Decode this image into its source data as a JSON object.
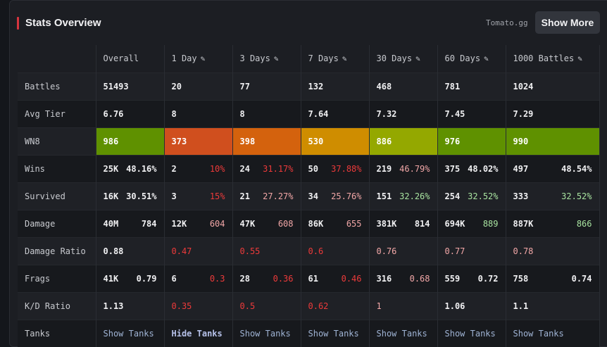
{
  "panel": {
    "title": "Stats Overview",
    "source": "Tomato.gg",
    "show_more_label": "Show More",
    "accent": "#d8353f"
  },
  "columns": [
    {
      "label": "Overall",
      "editable": false
    },
    {
      "label": "1 Day",
      "editable": true
    },
    {
      "label": "3 Days",
      "editable": true
    },
    {
      "label": "7 Days",
      "editable": true
    },
    {
      "label": "30 Days",
      "editable": true
    },
    {
      "label": "60 Days",
      "editable": true
    },
    {
      "label": "1000 Battles",
      "editable": true
    }
  ],
  "edit_icon": "pencil-icon",
  "rows": {
    "battles": {
      "label": "Battles",
      "values": [
        "51493",
        "20",
        "77",
        "132",
        "468",
        "781",
        "1024"
      ]
    },
    "avg_tier": {
      "label": "Avg Tier",
      "values": [
        "6.76",
        "8",
        "8",
        "7.64",
        "7.32",
        "7.45",
        "7.29"
      ]
    },
    "wn8": {
      "label": "WN8",
      "values": [
        "986",
        "373",
        "398",
        "530",
        "886",
        "976",
        "990"
      ],
      "colors": [
        "#5f9100",
        "#d04f1e",
        "#d4620d",
        "#cf8d00",
        "#94a800",
        "#5f9100",
        "#5f9100"
      ]
    },
    "wins": {
      "label": "Wins",
      "cells": [
        {
          "a": "25K",
          "b": "48.16%",
          "b_class": "val"
        },
        {
          "a": "2",
          "b": "10%",
          "b_class": "bad"
        },
        {
          "a": "24",
          "b": "31.17%",
          "b_class": "bad"
        },
        {
          "a": "50",
          "b": "37.88%",
          "b_class": "bad"
        },
        {
          "a": "219",
          "b": "46.79%",
          "b_class": "avg"
        },
        {
          "a": "375",
          "b": "48.02%",
          "b_class": "val"
        },
        {
          "a": "497",
          "b": "48.54%",
          "b_class": "val"
        }
      ]
    },
    "survived": {
      "label": "Survived",
      "cells": [
        {
          "a": "16K",
          "b": "30.51%",
          "b_class": "val"
        },
        {
          "a": "3",
          "b": "15%",
          "b_class": "bad"
        },
        {
          "a": "21",
          "b": "27.27%",
          "b_class": "avg"
        },
        {
          "a": "34",
          "b": "25.76%",
          "b_class": "avg"
        },
        {
          "a": "151",
          "b": "32.26%",
          "b_class": "good"
        },
        {
          "a": "254",
          "b": "32.52%",
          "b_class": "good"
        },
        {
          "a": "333",
          "b": "32.52%",
          "b_class": "good"
        }
      ]
    },
    "damage": {
      "label": "Damage",
      "cells": [
        {
          "a": "40M",
          "b": "784",
          "b_class": "val"
        },
        {
          "a": "12K",
          "b": "604",
          "b_class": "avg"
        },
        {
          "a": "47K",
          "b": "608",
          "b_class": "avg"
        },
        {
          "a": "86K",
          "b": "655",
          "b_class": "avg"
        },
        {
          "a": "381K",
          "b": "814",
          "b_class": "val"
        },
        {
          "a": "694K",
          "b": "889",
          "b_class": "good"
        },
        {
          "a": "887K",
          "b": "866",
          "b_class": "good"
        }
      ]
    },
    "damage_ratio": {
      "label": "Damage Ratio",
      "cells": [
        {
          "a": "0.88",
          "a_class": "val"
        },
        {
          "a": "0.47",
          "a_class": "bad"
        },
        {
          "a": "0.55",
          "a_class": "bad"
        },
        {
          "a": "0.6",
          "a_class": "bad"
        },
        {
          "a": "0.76",
          "a_class": "avg"
        },
        {
          "a": "0.77",
          "a_class": "avg"
        },
        {
          "a": "0.78",
          "a_class": "avg"
        }
      ]
    },
    "frags": {
      "label": "Frags",
      "cells": [
        {
          "a": "41K",
          "b": "0.79",
          "b_class": "val"
        },
        {
          "a": "6",
          "b": "0.3",
          "b_class": "bad"
        },
        {
          "a": "28",
          "b": "0.36",
          "b_class": "bad"
        },
        {
          "a": "61",
          "b": "0.46",
          "b_class": "bad"
        },
        {
          "a": "316",
          "b": "0.68",
          "b_class": "avg"
        },
        {
          "a": "559",
          "b": "0.72",
          "b_class": "val"
        },
        {
          "a": "758",
          "b": "0.74",
          "b_class": "val"
        }
      ]
    },
    "kd_ratio": {
      "label": "K/D Ratio",
      "cells": [
        {
          "a": "1.13",
          "a_class": "val"
        },
        {
          "a": "0.35",
          "a_class": "bad"
        },
        {
          "a": "0.5",
          "a_class": "bad"
        },
        {
          "a": "0.62",
          "a_class": "bad"
        },
        {
          "a": "1",
          "a_class": "avg"
        },
        {
          "a": "1.06",
          "a_class": "val"
        },
        {
          "a": "1.1",
          "a_class": "val"
        }
      ]
    },
    "tanks": {
      "label": "Tanks",
      "links": [
        {
          "text": "Show Tanks",
          "active": false
        },
        {
          "text": "Hide Tanks",
          "active": true
        },
        {
          "text": "Show Tanks",
          "active": false
        },
        {
          "text": "Show Tanks",
          "active": false
        },
        {
          "text": "Show Tanks",
          "active": false
        },
        {
          "text": "Show Tanks",
          "active": false
        },
        {
          "text": "Show Tanks",
          "active": false
        }
      ]
    }
  }
}
